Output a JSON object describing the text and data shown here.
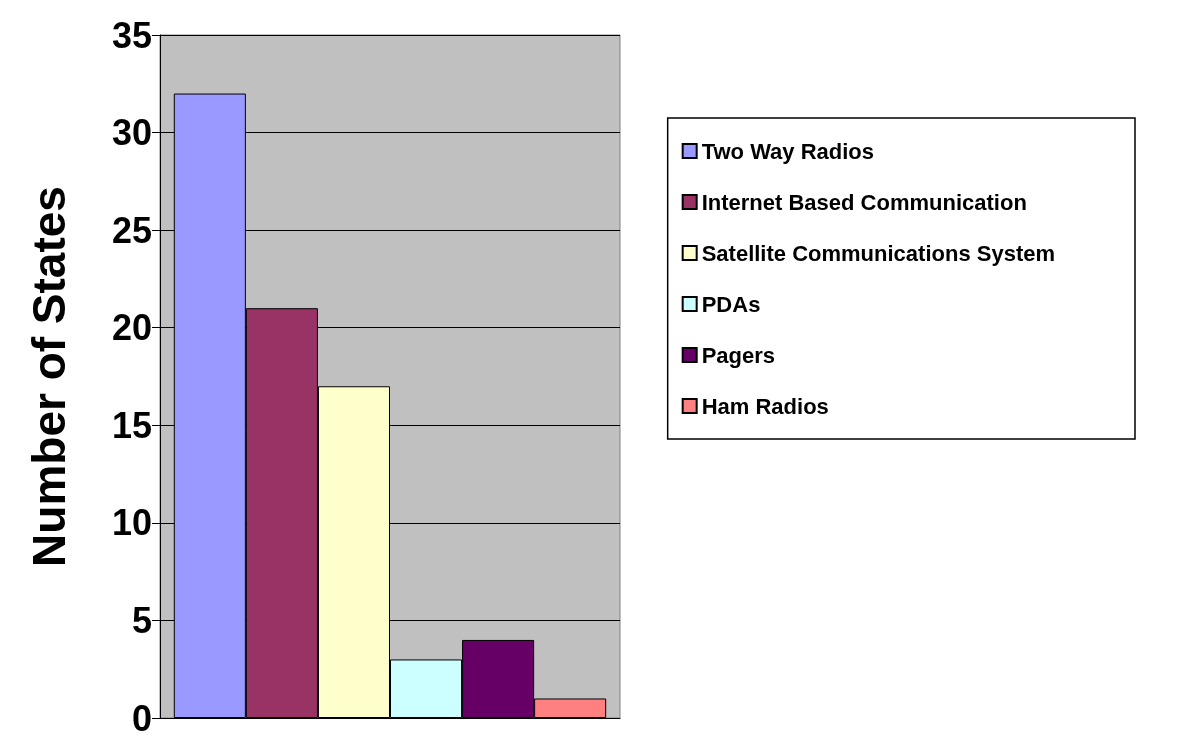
{
  "chart_data": {
    "type": "bar",
    "ylabel": "Number of States",
    "categories": [
      null
    ],
    "series": [
      {
        "name": "Two Way Radios",
        "color": "#9999ff",
        "values": [
          32
        ]
      },
      {
        "name": "Internet Based Communication",
        "color": "#993366",
        "values": [
          21
        ]
      },
      {
        "name": "Satellite Communications System",
        "color": "#ffffcc",
        "values": [
          17
        ]
      },
      {
        "name": "PDAs",
        "color": "#ccffff",
        "values": [
          3
        ]
      },
      {
        "name": "Pagers",
        "color": "#660066",
        "values": [
          4
        ]
      },
      {
        "name": "Ham Radios",
        "color": "#ff8080",
        "values": [
          1
        ]
      }
    ],
    "ylim": [
      0,
      35
    ],
    "yticks": [
      0,
      5,
      10,
      15,
      20,
      25,
      30,
      35
    ],
    "grid": "y",
    "legend": "right"
  }
}
